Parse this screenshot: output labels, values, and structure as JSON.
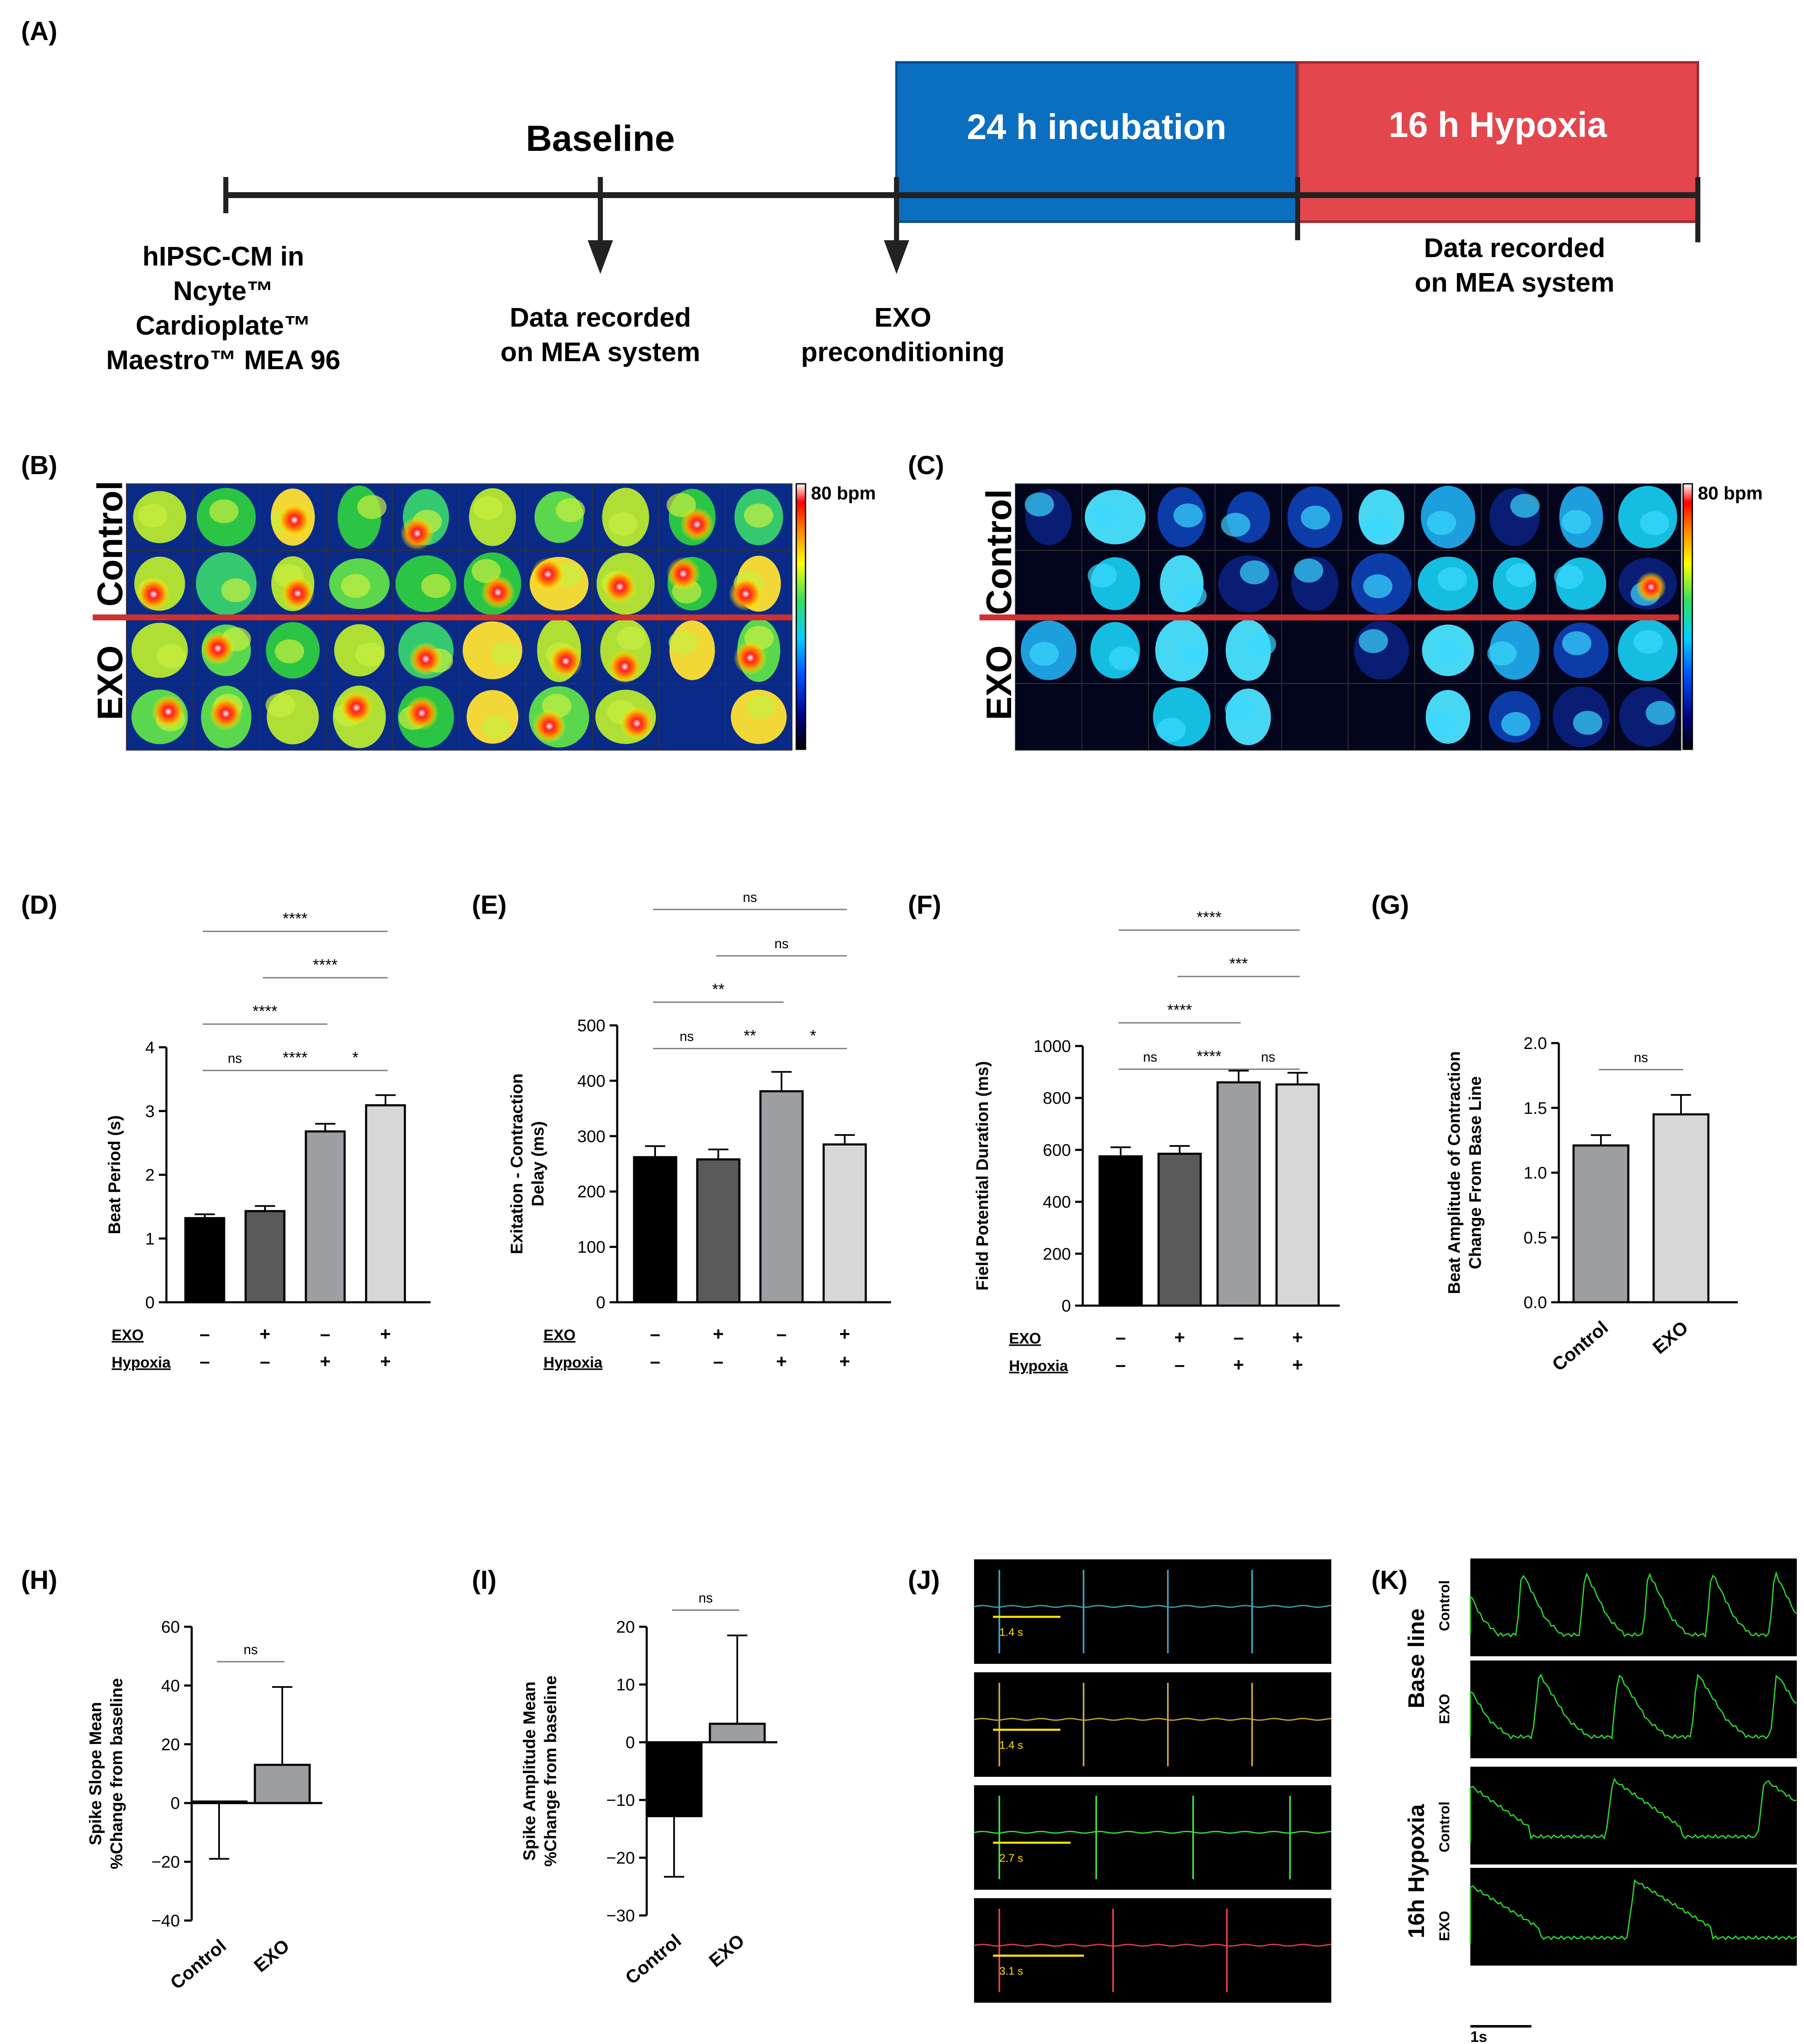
{
  "panels": {
    "A": {
      "label": "(A)",
      "baseline_title": "Baseline",
      "incubation": "24 h incubation",
      "hypoxia": "16 h Hypoxia",
      "start_text": [
        "hIPSC-CM in",
        "Ncyte™",
        "Cardioplate™",
        "Maestro™ MEA 96"
      ],
      "baseline_text": [
        "Data recorded",
        "on MEA system"
      ],
      "exo_text": [
        "EXO",
        "preconditioning"
      ],
      "hypoxia_text": [
        "Data recorded",
        "on MEA system"
      ],
      "colors": {
        "incubation": "#0b6fc0",
        "hypoxia": "#e3474d",
        "axis": "#222222"
      }
    },
    "B": {
      "label": "(B)",
      "row_labels": [
        "Control",
        "EXO"
      ],
      "scale_label": "80 bpm"
    },
    "C": {
      "label": "(C)",
      "row_labels": [
        "Control",
        "EXO"
      ],
      "scale_label": "80 bpm"
    },
    "D": {
      "label": "(D)"
    },
    "E": {
      "label": "(E)"
    },
    "F": {
      "label": "(F)"
    },
    "G": {
      "label": "(G)"
    },
    "H": {
      "label": "(H)"
    },
    "I": {
      "label": "(I)"
    },
    "J": {
      "label": "(J)",
      "intervals": [
        "1.4 s",
        "1.4 s",
        "2.7 s",
        "3.1 s"
      ],
      "trace_colors": [
        "#3aa0b8",
        "#c8a13c",
        "#3ddc3d",
        "#e04040"
      ]
    },
    "K": {
      "label": "(K)",
      "group_labels": [
        "Base line",
        "16h Hypoxia"
      ],
      "row_labels": [
        "Control",
        "EXO",
        "Control",
        "EXO"
      ],
      "scale_label": "1s"
    }
  },
  "chart_data": [
    {
      "id": "D",
      "type": "bar",
      "ylabel": "Beat Period (s)",
      "ylim": [
        0,
        4
      ],
      "yticks": [
        0,
        1,
        2,
        3,
        4
      ],
      "values": [
        1.32,
        1.43,
        2.68,
        3.09
      ],
      "errors": [
        0.06,
        0.08,
        0.12,
        0.16
      ],
      "factors": [
        {
          "name": "EXO",
          "signs": [
            "–",
            "+",
            "–",
            "+"
          ]
        },
        {
          "name": "Hypoxia",
          "signs": [
            "–",
            "–",
            "+",
            "+"
          ]
        }
      ],
      "comparisons": [
        {
          "a": 0,
          "b": 1,
          "text": "ns"
        },
        {
          "a": 1,
          "b": 2,
          "text": "****"
        },
        {
          "a": 2,
          "b": 3,
          "text": "*"
        },
        {
          "a": 0,
          "b": 2,
          "text": "****"
        },
        {
          "a": 1,
          "b": 3,
          "text": "****"
        },
        {
          "a": 0,
          "b": 3,
          "text": "****"
        }
      ]
    },
    {
      "id": "E",
      "type": "bar",
      "ylabel": [
        "Exitation - Contraction",
        "Delay (ms)"
      ],
      "ylim": [
        0,
        500
      ],
      "yticks": [
        0,
        100,
        200,
        300,
        400,
        500
      ],
      "values": [
        262,
        258,
        381,
        285
      ],
      "errors": [
        20,
        18,
        35,
        17
      ],
      "factors": [
        {
          "name": "EXO",
          "signs": [
            "–",
            "+",
            "–",
            "+"
          ]
        },
        {
          "name": "Hypoxia",
          "signs": [
            "–",
            "–",
            "+",
            "+"
          ]
        }
      ],
      "comparisons": [
        {
          "a": 0,
          "b": 1,
          "text": "ns"
        },
        {
          "a": 1,
          "b": 2,
          "text": "**"
        },
        {
          "a": 2,
          "b": 3,
          "text": "*"
        },
        {
          "a": 0,
          "b": 2,
          "text": "**"
        },
        {
          "a": 1,
          "b": 3,
          "text": "ns"
        },
        {
          "a": 0,
          "b": 3,
          "text": "ns"
        }
      ]
    },
    {
      "id": "F",
      "type": "bar",
      "ylabel": "Field Potential Duration (ms)",
      "ylim": [
        0,
        1000
      ],
      "yticks": [
        0,
        200,
        400,
        600,
        800,
        1000
      ],
      "values": [
        575,
        585,
        860,
        852
      ],
      "errors": [
        35,
        30,
        45,
        45
      ],
      "factors": [
        {
          "name": "EXO",
          "signs": [
            "–",
            "+",
            "–",
            "+"
          ]
        },
        {
          "name": "Hypoxia",
          "signs": [
            "–",
            "–",
            "+",
            "+"
          ]
        }
      ],
      "comparisons": [
        {
          "a": 0,
          "b": 1,
          "text": "ns"
        },
        {
          "a": 1,
          "b": 2,
          "text": "****"
        },
        {
          "a": 2,
          "b": 3,
          "text": "ns"
        },
        {
          "a": 0,
          "b": 2,
          "text": "****"
        },
        {
          "a": 1,
          "b": 3,
          "text": "***"
        },
        {
          "a": 0,
          "b": 3,
          "text": "****"
        }
      ]
    },
    {
      "id": "G",
      "type": "bar",
      "ylabel": [
        "Beat Amplitude of Contraction",
        "Change From Base Line"
      ],
      "ylim": [
        0,
        2.0
      ],
      "yticks": [
        "0.0",
        "0.5",
        "1.0",
        "1.5",
        "2.0"
      ],
      "categories": [
        "Control",
        "EXO"
      ],
      "values": [
        1.21,
        1.45
      ],
      "errors": [
        0.08,
        0.15
      ],
      "comparisons": [
        {
          "a": 0,
          "b": 1,
          "text": "ns"
        }
      ]
    },
    {
      "id": "H",
      "type": "bar",
      "ylabel": [
        "Spike Slope Mean",
        "%Change from baseline"
      ],
      "ylim": [
        -40,
        60
      ],
      "yticks": [
        "−40",
        "−20",
        "0",
        "20",
        "40",
        "60"
      ],
      "categories": [
        "Control",
        "EXO"
      ],
      "values": [
        0.5,
        13
      ],
      "errors_low": [
        19.5,
        0
      ],
      "errors_high": [
        0,
        26.5
      ],
      "comparisons": [
        {
          "a": 0,
          "b": 1,
          "text": "ns"
        }
      ]
    },
    {
      "id": "I",
      "type": "bar",
      "ylabel": [
        "Spike Amplitude Mean",
        "%Change from baseline"
      ],
      "ylim": [
        -30,
        20
      ],
      "yticks": [
        "−30",
        "−20",
        "−10",
        "0",
        "10",
        "20"
      ],
      "categories": [
        "Control",
        "EXO"
      ],
      "values": [
        -12.8,
        3.2
      ],
      "errors_low": [
        10.5,
        0
      ],
      "errors_high": [
        0,
        15.3
      ],
      "comparisons": [
        {
          "a": 0,
          "b": 1,
          "text": "ns"
        }
      ]
    }
  ]
}
